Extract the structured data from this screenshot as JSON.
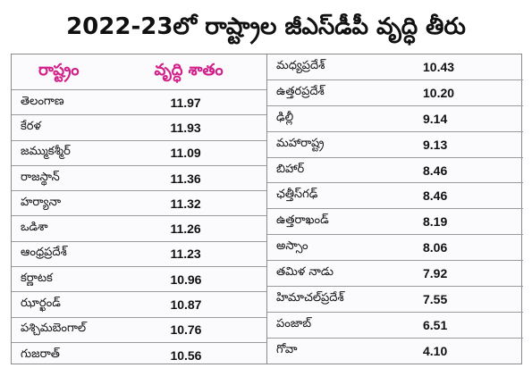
{
  "title": "2022-23లో రాష్ట్రాల జీఎస్‌డీపీ వృద్ధి తీరు",
  "header": {
    "state_label": "రాష్ట్రం",
    "growth_label": "వృద్ధి శాతం"
  },
  "left_rows": [
    {
      "state": "తెలంగాణ",
      "value": "11.97"
    },
    {
      "state": "కేరళ",
      "value": "11.93"
    },
    {
      "state": "జమ్ముకశ్మీర్",
      "value": "11.09"
    },
    {
      "state": "రాజస్థాన్",
      "value": "11.36"
    },
    {
      "state": "హర్యానా",
      "value": "11.32"
    },
    {
      "state": "ఒడిశా",
      "value": "11.26"
    },
    {
      "state": "ఆంధ్రప్రదేశ్",
      "value": "11.23"
    },
    {
      "state": "కర్ణాటక",
      "value": "10.96"
    },
    {
      "state": "ఝార్ఖండ్",
      "value": "10.87"
    },
    {
      "state": "పశ్చిమబెంగాల్",
      "value": "10.76"
    },
    {
      "state": "గుజరాత్",
      "value": "10.56"
    }
  ],
  "right_rows": [
    {
      "state": "మధ్యప్రదేశ్",
      "value": "10.43"
    },
    {
      "state": "ఉత్తరప్రదేశ్",
      "value": "10.20"
    },
    {
      "state": "ఢిల్లీ",
      "value": "9.14"
    },
    {
      "state": "మహారాష్ట్ర",
      "value": "9.13"
    },
    {
      "state": "బిహార్",
      "value": "8.46"
    },
    {
      "state": "ఛత్తీస్‌గఢ్",
      "value": "8.46"
    },
    {
      "state": "ఉత్తరాఖండ్",
      "value": "8.19"
    },
    {
      "state": "అస్సాం",
      "value": "8.06"
    },
    {
      "state": "తమిళ నాడు",
      "value": "7.92"
    },
    {
      "state": "హిమాచల్‌ప్రదేశ్",
      "value": "7.55"
    },
    {
      "state": "పంజాబ్",
      "value": "6.51"
    },
    {
      "state": "గోవా",
      "value": "4.10"
    }
  ],
  "colors": {
    "header_text": "#d21f8a",
    "border": "#8a8a8a",
    "text": "#111111"
  }
}
